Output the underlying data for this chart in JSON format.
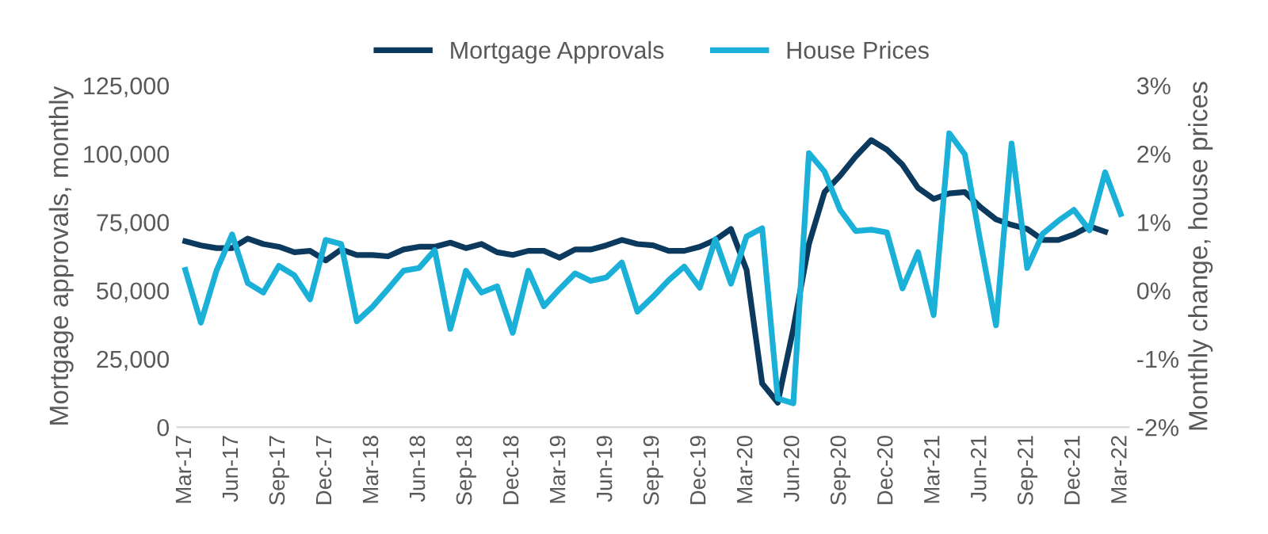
{
  "chart_data": {
    "type": "line",
    "categories": [
      "Mar-17",
      null,
      null,
      "Jun-17",
      null,
      null,
      "Sep-17",
      null,
      null,
      "Dec-17",
      null,
      null,
      "Mar-18",
      null,
      null,
      "Jun-18",
      null,
      null,
      "Sep-18",
      null,
      null,
      "Dec-18",
      null,
      null,
      "Mar-19",
      null,
      null,
      "Jun-19",
      null,
      null,
      "Sep-19",
      null,
      null,
      "Dec-19",
      null,
      null,
      "Mar-20",
      null,
      null,
      "Jun-20",
      null,
      null,
      "Sep-20",
      null,
      null,
      "Dec-20",
      null,
      null,
      "Mar-21",
      null,
      null,
      "Jun-21",
      null,
      null,
      "Sep-21",
      null,
      null,
      "Dec-21",
      null,
      null,
      "Mar-22"
    ],
    "series": [
      {
        "name": "Mortgage Approvals",
        "color": "#0b3a5e",
        "values": [
          68000,
          66500,
          65500,
          65500,
          69000,
          67000,
          66000,
          64000,
          64500,
          61000,
          65000,
          63000,
          63000,
          62500,
          65000,
          66000,
          66000,
          67500,
          65500,
          67000,
          64000,
          63000,
          64500,
          64500,
          62000,
          65000,
          65000,
          66500,
          68500,
          67000,
          66500,
          64500,
          64500,
          66000,
          68500,
          72500,
          57500,
          16000,
          9000,
          36000,
          67000,
          86000,
          92000,
          99000,
          105000,
          101500,
          96000,
          87500,
          83500,
          85500,
          86000,
          80500,
          76000,
          74000,
          72500,
          68500,
          68500,
          70500,
          73500,
          71500,
          null
        ]
      },
      {
        "name": "House Prices",
        "color": "#1ab0d8",
        "axis": "y2",
        "values": [
          0.3,
          -0.47,
          0.29,
          0.82,
          0.11,
          -0.03,
          0.36,
          0.22,
          -0.13,
          0.74,
          0.68,
          -0.45,
          -0.24,
          0.02,
          0.29,
          0.33,
          0.59,
          -0.56,
          0.29,
          -0.03,
          0.06,
          -0.62,
          0.29,
          -0.23,
          0.02,
          0.25,
          0.14,
          0.19,
          0.41,
          -0.31,
          -0.09,
          0.15,
          0.35,
          0.04,
          0.75,
          0.1,
          0.79,
          0.91,
          -1.58,
          -1.65,
          2.01,
          1.74,
          1.18,
          0.87,
          0.89,
          0.85,
          0.03,
          0.56,
          -0.36,
          2.3,
          1.99,
          0.71,
          -0.51,
          2.15,
          0.33,
          0.83,
          1.02,
          1.18,
          0.88,
          1.73,
          1.12
        ]
      }
    ],
    "ylabel": "Mortgage approvals, monthly",
    "y2label": "Monthly change, house prices",
    "ylim": [
      0,
      125000
    ],
    "yticks": [
      {
        "value": 0,
        "label": "0"
      },
      {
        "value": 25000,
        "label": "25,000"
      },
      {
        "value": 50000,
        "label": "50,000"
      },
      {
        "value": 75000,
        "label": "75,000"
      },
      {
        "value": 100000,
        "label": "100,000"
      },
      {
        "value": 125000,
        "label": "125,000"
      }
    ],
    "y2lim": [
      -2,
      3
    ],
    "y2ticks": [
      {
        "value": -2,
        "label": "-2%"
      },
      {
        "value": -1,
        "label": "-1%"
      },
      {
        "value": 0,
        "label": "0%"
      },
      {
        "value": 1,
        "label": "1%"
      },
      {
        "value": 2,
        "label": "2%"
      },
      {
        "value": 3,
        "label": "3%"
      }
    ],
    "legend": "top",
    "grid": false,
    "line_style": "solid",
    "marker": "none"
  }
}
